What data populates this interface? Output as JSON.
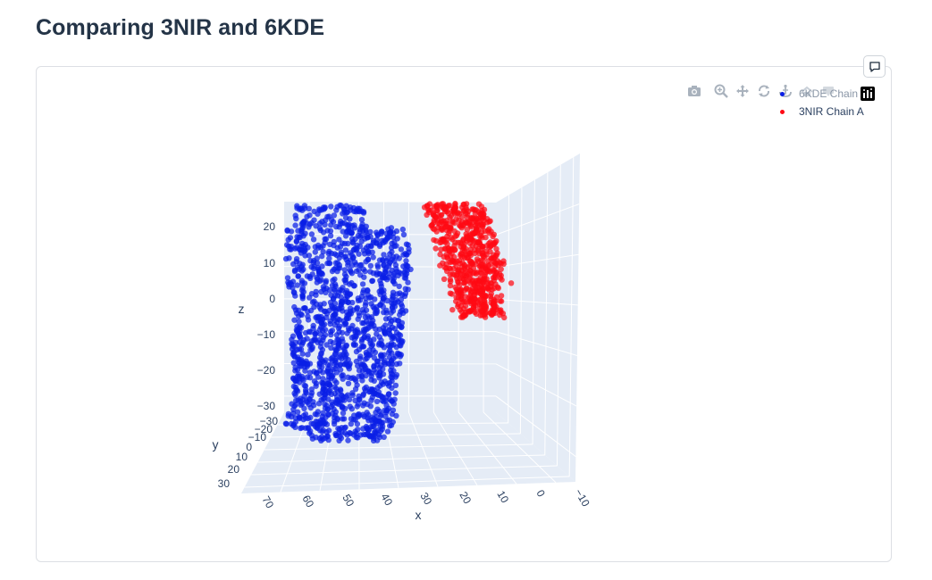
{
  "page": {
    "title": "Comparing 3NIR and 6KDE"
  },
  "toolbar": {
    "icons": [
      "camera-icon",
      "zoom-icon",
      "pan-icon",
      "orbit-rotation-icon",
      "turntable-rotation-icon",
      "reset-camera-icon",
      "hover-icon",
      "plotly-logo-icon"
    ]
  },
  "colors": {
    "chain_6kde": "#0a1ee6",
    "chain_3nir": "#ff0a14",
    "scene_bg": "#e5ecf6",
    "grid": "#ffffff"
  },
  "chart_data": {
    "type": "scatter",
    "subtype": "scatter3d",
    "series": [
      {
        "name": "6KDE Chain A",
        "color": "#0a1ee6",
        "x_range": [
          25,
          45
        ],
        "y_range": [
          -30,
          30
        ],
        "z_range": [
          -35,
          25
        ],
        "approx_points": 2200
      },
      {
        "name": "3NIR Chain A",
        "color": "#ff0a14",
        "x_range": [
          5,
          20
        ],
        "y_range": [
          -5,
          10
        ],
        "z_range": [
          5,
          20
        ],
        "approx_points": 700
      }
    ],
    "axes": {
      "x": {
        "title": "x",
        "ticks": [
          "70",
          "60",
          "50",
          "40",
          "30",
          "20",
          "10",
          "0",
          "−10"
        ]
      },
      "y": {
        "title": "y",
        "ticks": [
          "−30",
          "−20",
          "−10",
          "0",
          "10",
          "20",
          "30"
        ]
      },
      "z": {
        "title": "z",
        "ticks": [
          "20",
          "10",
          "0",
          "−10",
          "−20",
          "−30"
        ]
      }
    },
    "legend_position": "top-right",
    "grid": true
  }
}
